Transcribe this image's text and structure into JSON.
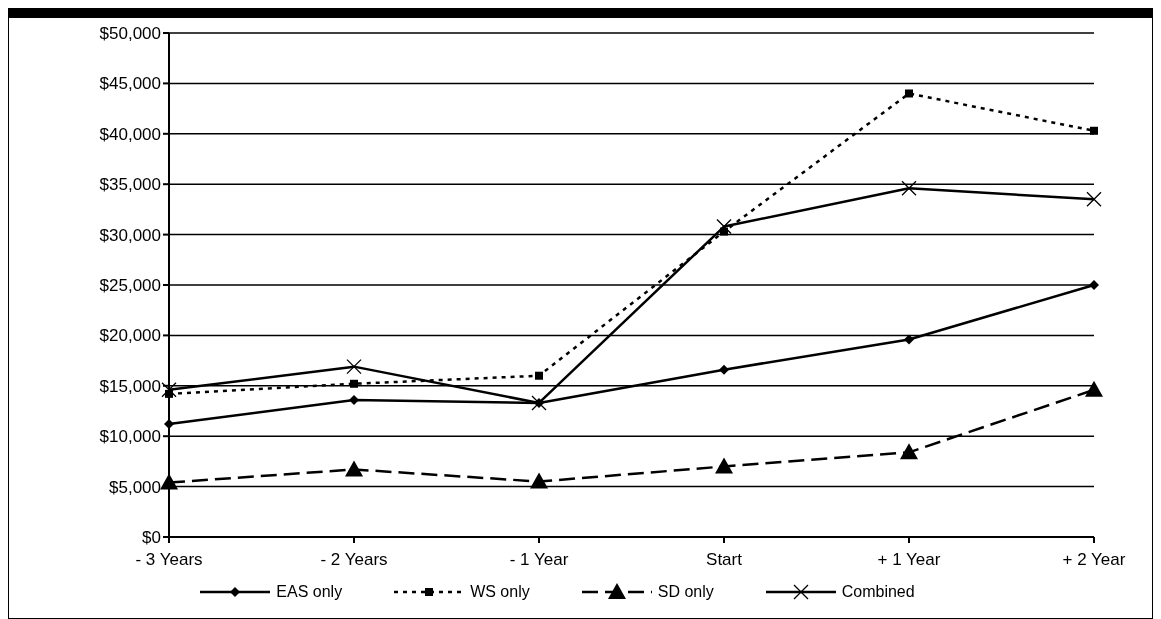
{
  "chart_data": {
    "type": "line",
    "categories": [
      "- 3 Years",
      "- 2 Years",
      "- 1 Year",
      "Start",
      "+ 1 Year",
      "+ 2 Year"
    ],
    "series": [
      {
        "name": "EAS only",
        "color": "#000000",
        "marker": "diamond",
        "line_style": "solid",
        "values": [
          11200,
          13600,
          13300,
          16600,
          19600,
          25000
        ]
      },
      {
        "name": "WS only",
        "color": "#000000",
        "marker": "square",
        "line_style": "dotted",
        "values": [
          14200,
          15200,
          16000,
          30300,
          44000,
          40300
        ]
      },
      {
        "name": "SD only",
        "color": "#000000",
        "marker": "triangle",
        "line_style": "dashed",
        "values": [
          5400,
          6700,
          5500,
          7000,
          8400,
          14600
        ]
      },
      {
        "name": "Combined",
        "color": "#000000",
        "marker": "cross",
        "line_style": "solid",
        "values": [
          14600,
          16900,
          13300,
          30800,
          34600,
          33500
        ]
      }
    ],
    "ylim": [
      0,
      50000
    ],
    "yticks": [
      {
        "value": 0,
        "label": "$0"
      },
      {
        "value": 5000,
        "label": "$5,000"
      },
      {
        "value": 10000,
        "label": "$10,000"
      },
      {
        "value": 15000,
        "label": "$15,000"
      },
      {
        "value": 20000,
        "label": "$20,000"
      },
      {
        "value": 25000,
        "label": "$25,000"
      },
      {
        "value": 30000,
        "label": "$30,000"
      },
      {
        "value": 35000,
        "label": "$35,000"
      },
      {
        "value": 40000,
        "label": "$40,000"
      },
      {
        "value": 45000,
        "label": "$45,000"
      },
      {
        "value": 50000,
        "label": "$50,000"
      }
    ],
    "grid": "y",
    "legend": "bottom"
  }
}
